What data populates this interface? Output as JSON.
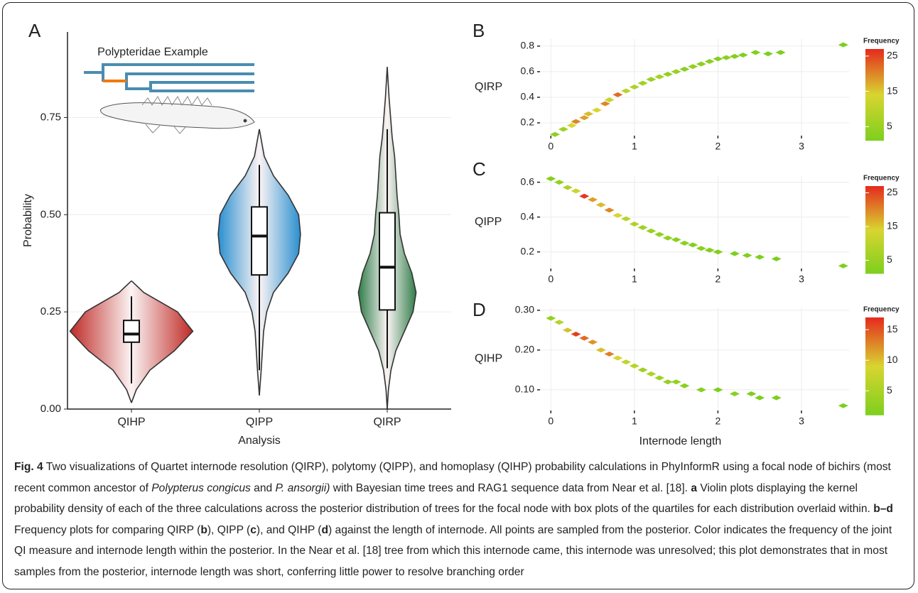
{
  "chart_data": [
    {
      "type": "violin",
      "label": "A",
      "inset_title": "Polypteridae Example",
      "x_label": "Analysis",
      "y_label": "Probability",
      "categories": [
        "QIHP",
        "QIPP",
        "QIRP"
      ],
      "colors": [
        "#bf2a26",
        "#2a8fd0",
        "#2f7d48"
      ],
      "ylim": [
        0,
        0.97
      ],
      "yticks": [
        {
          "value": 0,
          "label": "0.00"
        },
        0.25,
        {
          "value": 0.5,
          "label": "0.50"
        },
        0.75
      ],
      "grid": true,
      "violins": [
        {
          "q1": 0.172,
          "median": 0.193,
          "q3": 0.228,
          "whisker_low": 0.066,
          "whisker_high": 0.29,
          "density_y": [
            0.016,
            0.05,
            0.1,
            0.15,
            0.2,
            0.25,
            0.3,
            0.33
          ],
          "density": [
            0,
            0.08,
            0.3,
            0.7,
            1,
            0.75,
            0.2,
            0
          ]
        },
        {
          "q1": 0.345,
          "median": 0.445,
          "q3": 0.52,
          "whisker_low": 0.1,
          "whisker_high": 0.628,
          "density_y": [
            0.035,
            0.1,
            0.2,
            0.25,
            0.3,
            0.35,
            0.4,
            0.45,
            0.5,
            0.55,
            0.6,
            0.65,
            0.72
          ],
          "density": [
            0,
            0.03,
            0.07,
            0.12,
            0.23,
            0.47,
            0.64,
            0.67,
            0.64,
            0.47,
            0.23,
            0.08,
            0
          ]
        },
        {
          "q1": 0.255,
          "median": 0.365,
          "q3": 0.505,
          "whisker_low": 0.105,
          "whisker_high": 0.72,
          "density_y": [
            0,
            0.05,
            0.1,
            0.15,
            0.2,
            0.25,
            0.3,
            0.35,
            0.4,
            0.45,
            0.5,
            0.55,
            0.6,
            0.65,
            0.7,
            0.8,
            0.88
          ],
          "density": [
            0,
            0.02,
            0.06,
            0.14,
            0.28,
            0.42,
            0.47,
            0.4,
            0.28,
            0.21,
            0.19,
            0.16,
            0.14,
            0.12,
            0.08,
            0.03,
            0
          ]
        }
      ]
    },
    {
      "type": "scatter",
      "label": "B",
      "y_label": "QIRP",
      "legend_title": "Frequency",
      "xlim": [
        -0.13,
        3.57
      ],
      "xticks": [
        0,
        1,
        2,
        3
      ],
      "ylim": [
        0.1,
        0.855
      ],
      "yticks": [
        0.2,
        0.4,
        0.6,
        0.8
      ],
      "grid": true,
      "colormap": [
        "#7dcf1e",
        "#d8d530",
        "#e52a1e"
      ],
      "clim": [
        1,
        27
      ],
      "cticks": [
        5,
        15,
        25
      ],
      "x": [
        0.05,
        0.15,
        0.25,
        0.3,
        0.4,
        0.45,
        0.55,
        0.65,
        0.7,
        0.8,
        0.9,
        1.0,
        1.1,
        1.2,
        1.3,
        1.4,
        1.5,
        1.6,
        1.7,
        1.8,
        1.9,
        2.0,
        2.1,
        2.2,
        2.3,
        2.45,
        2.6,
        2.75,
        3.5
      ],
      "y": [
        0.11,
        0.15,
        0.18,
        0.21,
        0.24,
        0.27,
        0.3,
        0.35,
        0.38,
        0.42,
        0.45,
        0.48,
        0.51,
        0.54,
        0.56,
        0.58,
        0.6,
        0.62,
        0.64,
        0.66,
        0.68,
        0.7,
        0.71,
        0.72,
        0.73,
        0.75,
        0.74,
        0.75,
        0.81
      ],
      "frequency": [
        3,
        6,
        14,
        20,
        18,
        16,
        14,
        20,
        12,
        22,
        10,
        8,
        6,
        5,
        7,
        4,
        5,
        3,
        4,
        3,
        3,
        2,
        3,
        2,
        2,
        2,
        1,
        1,
        1
      ]
    },
    {
      "type": "scatter",
      "label": "C",
      "y_label": "QIPP",
      "legend_title": "Frequency",
      "xlim": [
        -0.13,
        3.57
      ],
      "xticks": [
        0,
        1,
        2,
        3
      ],
      "ylim": [
        0.105,
        0.635
      ],
      "yticks": [
        0.2,
        0.4,
        0.6
      ],
      "grid": true,
      "colormap": [
        "#7dcf1e",
        "#d8d530",
        "#e52a1e"
      ],
      "clim": [
        1,
        27
      ],
      "cticks": [
        5,
        15,
        25
      ],
      "x": [
        0.0,
        0.1,
        0.2,
        0.3,
        0.4,
        0.5,
        0.6,
        0.7,
        0.8,
        0.9,
        1.0,
        1.1,
        1.2,
        1.3,
        1.4,
        1.5,
        1.6,
        1.7,
        1.8,
        1.9,
        2.0,
        2.2,
        2.35,
        2.5,
        2.7,
        3.5
      ],
      "y": [
        0.62,
        0.6,
        0.57,
        0.55,
        0.52,
        0.5,
        0.47,
        0.44,
        0.41,
        0.39,
        0.36,
        0.34,
        0.32,
        0.3,
        0.28,
        0.27,
        0.25,
        0.24,
        0.22,
        0.21,
        0.2,
        0.19,
        0.18,
        0.17,
        0.16,
        0.12
      ],
      "frequency": [
        2,
        4,
        8,
        12,
        26,
        18,
        16,
        20,
        14,
        10,
        8,
        6,
        5,
        4,
        4,
        3,
        3,
        2,
        3,
        2,
        2,
        1,
        2,
        1,
        1,
        1
      ]
    },
    {
      "type": "scatter",
      "label": "D",
      "y_label": "QIHP",
      "x_label": "Internode length",
      "legend_title": "Frequency",
      "xlim": [
        -0.13,
        3.57
      ],
      "xticks": [
        0,
        1,
        2,
        3
      ],
      "ylim": [
        0.048,
        0.307
      ],
      "yticks": [
        {
          "value": 0.1,
          "label": "0.10"
        },
        {
          "value": 0.2,
          "label": "0.20"
        },
        {
          "value": 0.3,
          "label": "0.30"
        }
      ],
      "grid": true,
      "colormap": [
        "#7dcf1e",
        "#d8d530",
        "#e52a1e"
      ],
      "clim": [
        1,
        17
      ],
      "cticks": [
        5,
        10,
        15
      ],
      "x": [
        0.0,
        0.1,
        0.2,
        0.3,
        0.4,
        0.5,
        0.6,
        0.7,
        0.8,
        0.9,
        1.0,
        1.1,
        1.2,
        1.3,
        1.4,
        1.5,
        1.6,
        1.8,
        2.0,
        2.2,
        2.4,
        2.5,
        2.7,
        3.5
      ],
      "y": [
        0.28,
        0.27,
        0.25,
        0.24,
        0.23,
        0.22,
        0.2,
        0.19,
        0.18,
        0.17,
        0.16,
        0.15,
        0.14,
        0.13,
        0.12,
        0.12,
        0.11,
        0.1,
        0.1,
        0.09,
        0.09,
        0.08,
        0.08,
        0.06
      ],
      "frequency": [
        3,
        6,
        10,
        16,
        14,
        12,
        10,
        13,
        9,
        7,
        6,
        4,
        5,
        4,
        3,
        3,
        2,
        2,
        1,
        2,
        1,
        1,
        1,
        1
      ]
    }
  ],
  "caption": [
    "Fig. 4",
    " Two visualizations of Quartet internode resolution (QIRP), polytomy (QIPP), and homoplasy (QIHP) probability calculations in PhyInformR using a focal node of bichirs (most recent common ancestor of ",
    "Polypterus congicus",
    " and ",
    "P. ansorgii)",
    " with Bayesian time trees and RAG1 sequence data from Near et al. [18]. ",
    "a",
    " Violin plots displaying the kernel probability density of each of the three calculations across the posterior distribution of trees for the focal node with box plots of the quartiles for each distribution overlaid within. ",
    "b–d",
    " Frequency plots for comparing QIRP (",
    "b",
    "), QIPP (",
    "c",
    "), and QIHP (",
    "d",
    ") against the length of internode. All points are sampled from the posterior. Color indicates the frequency of the joint QI measure and internode length within the posterior. In the Near et al. [18] tree from which this internode came, this internode was unresolved; this plot demonstrates that in most samples from the posterior, internode length was short, conferring little power to resolve branching order"
  ]
}
